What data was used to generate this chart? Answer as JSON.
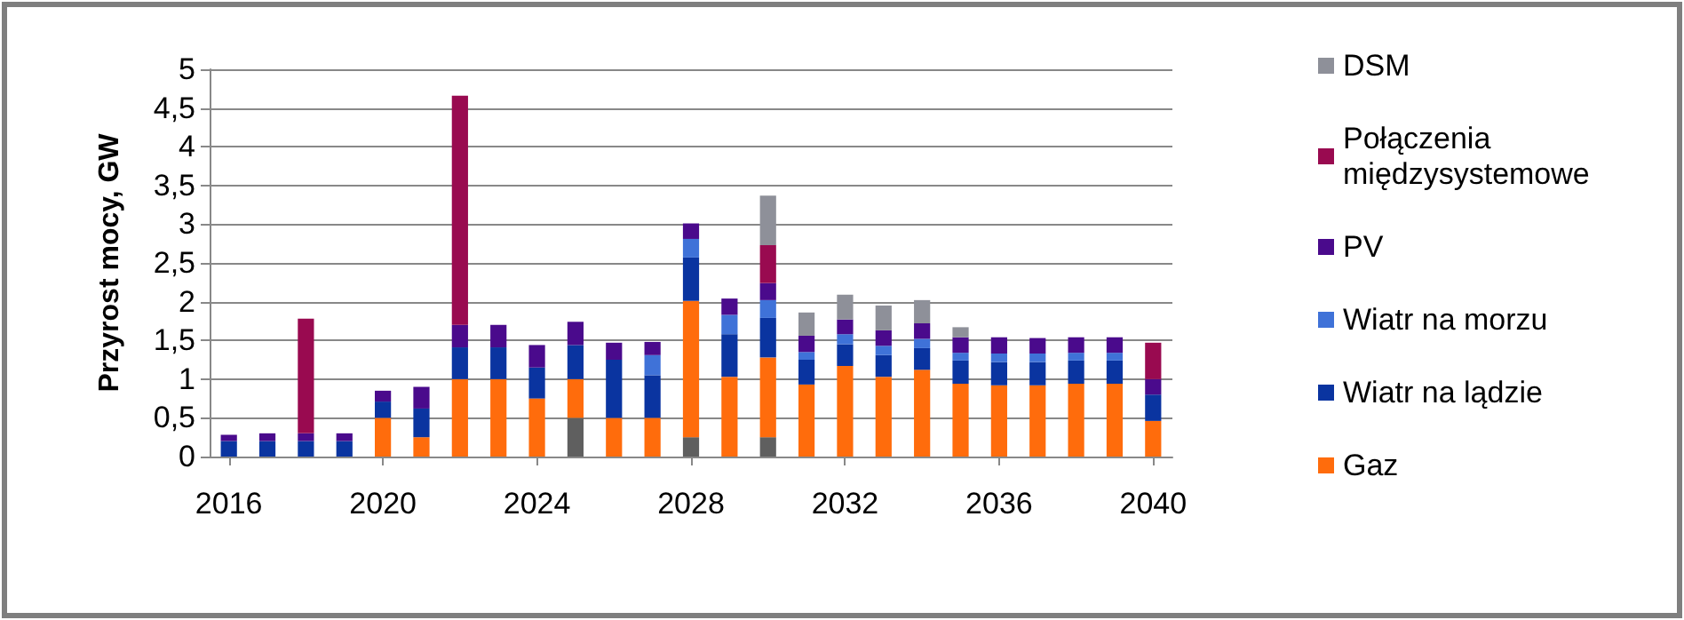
{
  "chart_data": {
    "type": "bar",
    "stacked": true,
    "ylabel": "Przyrost mocy, GW",
    "categories": [
      "2016",
      null,
      null,
      null,
      "2020",
      null,
      null,
      null,
      "2024",
      null,
      null,
      null,
      "2028",
      null,
      null,
      null,
      "2032",
      null,
      null,
      null,
      "2036",
      null,
      null,
      null,
      "2040"
    ],
    "series": [
      {
        "color": "#5f5f5f",
        "values": [
          null,
          null,
          null,
          null,
          null,
          null,
          null,
          null,
          null,
          0.5,
          null,
          null,
          0.25,
          null,
          0.25,
          null,
          null,
          null,
          null,
          null,
          null,
          null,
          null,
          null,
          null
        ]
      },
      {
        "name": "Gaz",
        "color": "#ff6c0c",
        "values": [
          null,
          null,
          null,
          null,
          0.5,
          0.25,
          1.0,
          1.0,
          0.75,
          0.5,
          0.5,
          0.5,
          1.76,
          1.03,
          1.03,
          0.93,
          1.17,
          1.03,
          1.12,
          0.94,
          0.92,
          0.92,
          0.94,
          0.94,
          0.46
        ]
      },
      {
        "name": "Wiatr na lądzie",
        "color": "#0a34a0",
        "values": [
          0.2,
          0.2,
          0.2,
          0.2,
          0.21,
          0.37,
          0.41,
          0.41,
          0.4,
          0.44,
          0.75,
          0.55,
          0.56,
          0.55,
          0.51,
          0.32,
          0.28,
          0.28,
          0.28,
          0.3,
          0.3,
          0.3,
          0.3,
          0.3,
          0.34
        ]
      },
      {
        "name": "Wiatr na morzu",
        "color": "#3f72d8",
        "values": [
          null,
          null,
          null,
          null,
          null,
          null,
          null,
          null,
          null,
          null,
          null,
          0.26,
          0.24,
          0.25,
          0.23,
          0.1,
          0.13,
          0.12,
          0.12,
          0.1,
          0.11,
          0.11,
          0.1,
          0.1,
          null
        ]
      },
      {
        "name": "PV",
        "color": "#4a0a8c",
        "values": [
          0.08,
          0.1,
          0.1,
          0.1,
          0.14,
          0.28,
          0.29,
          0.29,
          0.29,
          0.3,
          0.22,
          0.17,
          0.2,
          0.21,
          0.22,
          0.21,
          0.19,
          0.2,
          0.2,
          0.2,
          0.21,
          0.2,
          0.2,
          0.2,
          0.2
        ]
      },
      {
        "name": "Połączenia międzysystemowe",
        "color": "#990a50",
        "values": [
          null,
          null,
          1.48,
          null,
          null,
          null,
          2.96,
          null,
          null,
          null,
          null,
          null,
          null,
          null,
          0.49,
          null,
          null,
          null,
          null,
          null,
          null,
          null,
          null,
          null,
          0.47
        ]
      },
      {
        "name": "DSM",
        "color": "#8e9099",
        "values": [
          null,
          null,
          null,
          null,
          null,
          null,
          null,
          null,
          null,
          null,
          null,
          null,
          null,
          null,
          0.64,
          0.3,
          0.32,
          0.32,
          0.3,
          0.13,
          null,
          null,
          null,
          null,
          null
        ]
      }
    ],
    "ylim": [
      0,
      5
    ],
    "yticks": [
      0,
      {
        "value": 0.5,
        "label": "0,5"
      },
      1,
      {
        "value": 1.5,
        "label": "1,5"
      },
      2,
      {
        "value": 2.5,
        "label": "2,5"
      },
      3,
      {
        "value": 3.5,
        "label": "3,5"
      },
      4,
      {
        "value": 4.5,
        "label": "4,5"
      },
      5
    ],
    "grid": "y",
    "legend": "right"
  }
}
